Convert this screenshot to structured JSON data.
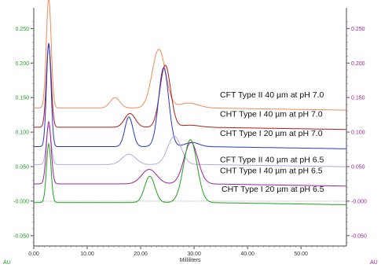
{
  "chart_data": {
    "type": "line",
    "xlabel": "Milliliters",
    "left_unit": "AU",
    "right_unit": "AU",
    "xlim": [
      0,
      58.5
    ],
    "ylim_left": [
      -0.065,
      0.28
    ],
    "ylim_right": [
      -0.065,
      0.28
    ],
    "x_ticks": [
      0,
      10,
      20,
      30,
      40,
      50
    ],
    "x_tick_labels": [
      "0.00",
      "10.00",
      "20.00",
      "30.00",
      "40.00",
      "50.00"
    ],
    "left_ticks": [
      0.25,
      0.2,
      0.15,
      0.1,
      0.05,
      0.0,
      -0.05
    ],
    "left_tick_labels": [
      "0.250",
      "0.200",
      "0.150",
      "0.100",
      "0.050",
      "-0.000",
      "-0.050"
    ],
    "right_ticks": [
      0.25,
      0.2,
      0.15,
      0.1,
      0.05,
      0.0,
      -0.05
    ],
    "right_tick_labels": [
      "0.250",
      "0.200",
      "0.150",
      "0.100",
      "0.050",
      "-0.000",
      "-0.050"
    ],
    "left_color": "#22a022",
    "right_color": "#a0209a",
    "series": [
      {
        "name": "CFT Type II 40 µm at pH 7.0",
        "color": "#f08a5a",
        "baseline": 0.135,
        "peaks": [
          [
            2.8,
            0.16,
            0.45
          ],
          [
            15.2,
            0.015,
            0.9
          ],
          [
            23.4,
            0.085,
            1.25
          ],
          [
            29.0,
            0.007,
            1.8
          ]
        ]
      },
      {
        "name": "CHT Type I 40 µm at pH 7.0",
        "color": "#b01c1c",
        "baseline": 0.107,
        "peaks": [
          [
            2.8,
            0.12,
            0.45
          ],
          [
            18.0,
            0.02,
            1.0
          ],
          [
            24.6,
            0.09,
            1.0
          ],
          [
            29.2,
            0.003,
            1.8
          ]
        ]
      },
      {
        "name": "CHT Type I 20 µm at pH 7.0",
        "color": "#2a36c8",
        "baseline": 0.079,
        "peaks": [
          [
            2.8,
            0.15,
            0.42
          ],
          [
            17.8,
            0.043,
            0.75
          ],
          [
            24.3,
            0.114,
            0.95
          ],
          [
            29.6,
            0.006,
            1.3
          ]
        ]
      },
      {
        "name": "CFT Type II 40 µm at pH 6.5",
        "color": "#b0acdc",
        "baseline": 0.053,
        "peaks": [
          [
            2.8,
            0.056,
            0.45
          ],
          [
            17.8,
            0.015,
            1.3
          ],
          [
            26.3,
            0.041,
            1.25
          ]
        ]
      },
      {
        "name": "CHT Type I 40 µm at pH 6.5",
        "color": "#a0209a",
        "baseline": 0.025,
        "peaks": [
          [
            2.8,
            0.09,
            0.45
          ],
          [
            21.6,
            0.021,
            1.4
          ],
          [
            29.4,
            0.06,
            1.3
          ]
        ]
      },
      {
        "name": "CHT Type I 20 µm at pH 6.5",
        "color": "#22a022",
        "baseline": -0.002,
        "peaks": [
          [
            2.8,
            0.085,
            0.42
          ],
          [
            21.7,
            0.038,
            0.95
          ],
          [
            29.3,
            0.091,
            1.25
          ]
        ]
      }
    ],
    "grid": false
  }
}
